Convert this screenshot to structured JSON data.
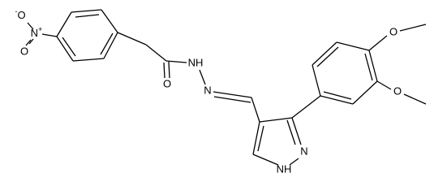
{
  "atoms": [
    {
      "text": "O",
      "charge": "-"
    },
    {
      "text": "N",
      "charge": "+"
    },
    {
      "text": "O"
    },
    {
      "text": "O"
    },
    {
      "text": "NH"
    },
    {
      "text": "N"
    },
    {
      "text": "N"
    },
    {
      "text": "NH"
    },
    {
      "text": "O"
    },
    {
      "text": "O"
    }
  ]
}
